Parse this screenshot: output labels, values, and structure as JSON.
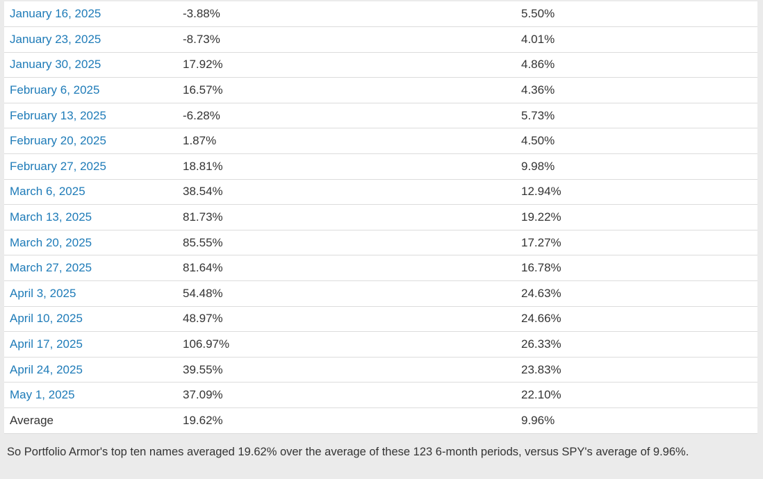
{
  "colors": {
    "page_bg": "#ebebeb",
    "row_border": "#dcdcdc",
    "link": "#1e7bb8",
    "text": "#333333"
  },
  "table": {
    "rows": [
      {
        "date": "January 16, 2025",
        "portfolio": "-3.88%",
        "spy": "5.50%"
      },
      {
        "date": "January 23, 2025",
        "portfolio": "-8.73%",
        "spy": "4.01%"
      },
      {
        "date": "January 30, 2025",
        "portfolio": "17.92%",
        "spy": "4.86%"
      },
      {
        "date": "February 6, 2025",
        "portfolio": "16.57%",
        "spy": "4.36%"
      },
      {
        "date": "February 13, 2025",
        "portfolio": "-6.28%",
        "spy": "5.73%"
      },
      {
        "date": "February 20, 2025",
        "portfolio": "1.87%",
        "spy": "4.50%"
      },
      {
        "date": "February 27, 2025",
        "portfolio": "18.81%",
        "spy": "9.98%"
      },
      {
        "date": "March 6, 2025",
        "portfolio": "38.54%",
        "spy": "12.94%"
      },
      {
        "date": "March 13, 2025",
        "portfolio": "81.73%",
        "spy": "19.22%"
      },
      {
        "date": "March 20, 2025",
        "portfolio": "85.55%",
        "spy": "17.27%"
      },
      {
        "date": "March 27, 2025",
        "portfolio": "81.64%",
        "spy": "16.78%"
      },
      {
        "date": "April 3, 2025",
        "portfolio": "54.48%",
        "spy": "24.63%"
      },
      {
        "date": "April 10, 2025",
        "portfolio": "48.97%",
        "spy": "24.66%"
      },
      {
        "date": "April 17, 2025",
        "portfolio": "106.97%",
        "spy": "26.33%"
      },
      {
        "date": "April 24, 2025",
        "portfolio": "39.55%",
        "spy": "23.83%"
      },
      {
        "date": "May 1, 2025",
        "portfolio": "37.09%",
        "spy": "22.10%"
      }
    ],
    "average": {
      "label": "Average",
      "portfolio": "19.62%",
      "spy": "9.96%"
    }
  },
  "footer": {
    "text": "So Portfolio Armor's top ten names averaged 19.62% over the average of these 123 6-month periods, versus SPY's average of 9.96%."
  }
}
